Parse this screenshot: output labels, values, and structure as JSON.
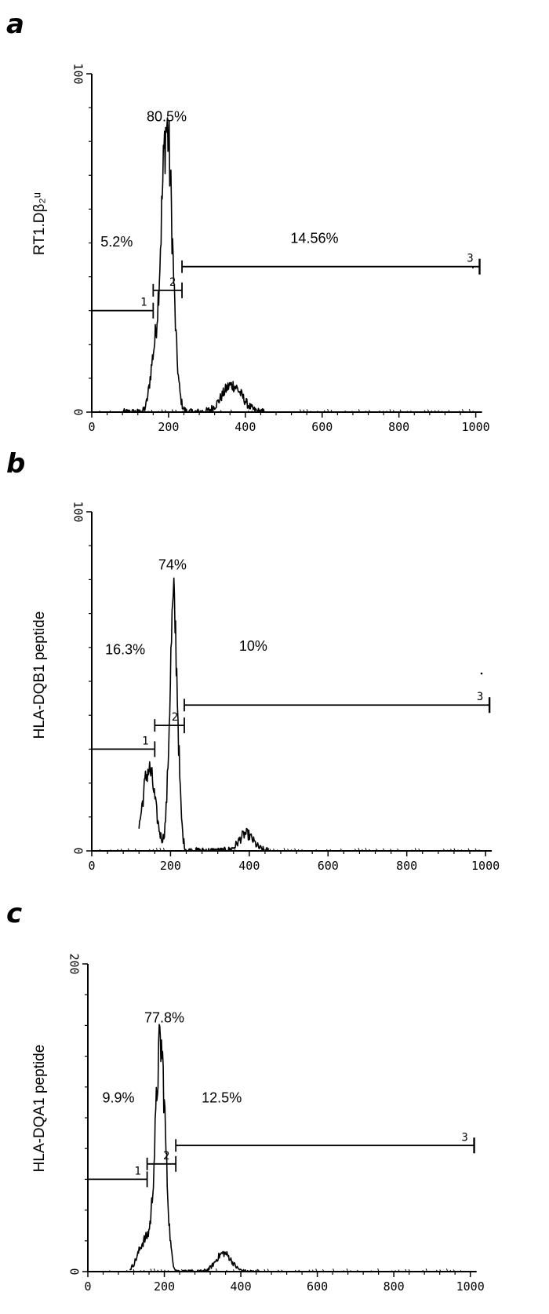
{
  "chart_data": [
    {
      "type": "histogram",
      "panel": "a",
      "ylabel": "RT1.Dβ₂ᵘ",
      "xlabel": "",
      "xlim": [
        0,
        1000
      ],
      "xticks": [
        "0",
        "200",
        "400",
        "600",
        "800",
        "1000"
      ],
      "ylim": [
        0,
        100
      ],
      "yticks": [
        "0",
        "100"
      ],
      "peaks": [
        {
          "center": 195,
          "sigma": 15,
          "height": 84
        },
        {
          "center": 160,
          "sigma": 10,
          "height": 12
        },
        {
          "center": 365,
          "sigma": 26,
          "height": 8
        }
      ],
      "data_range": [
        80,
        450
      ],
      "gates": [
        {
          "label": "1",
          "start": 0,
          "end": 160,
          "level": 30
        },
        {
          "label": "2",
          "start": 160,
          "end": 235,
          "level": 36
        },
        {
          "label": "3",
          "start": 235,
          "end": 1010,
          "level": 43
        }
      ],
      "annotations": [
        {
          "text": "80.5%",
          "x": 195,
          "y": 86
        },
        {
          "text": "5.2%",
          "x": 65,
          "y": 49
        },
        {
          "text": "14.56%",
          "x": 580,
          "y": 50
        }
      ]
    },
    {
      "type": "histogram",
      "panel": "b",
      "ylabel": "HLA-DQB1 peptide",
      "xlabel": "",
      "xlim": [
        0,
        1000
      ],
      "xticks": [
        "0",
        "200",
        "400",
        "600",
        "800",
        "1000"
      ],
      "ylim": [
        0,
        100
      ],
      "yticks": [
        "0",
        "100"
      ],
      "peaks": [
        {
          "center": 208,
          "sigma": 10,
          "height": 72
        },
        {
          "center": 145,
          "sigma": 16,
          "height": 24
        },
        {
          "center": 392,
          "sigma": 18,
          "height": 5
        }
      ],
      "data_range": [
        120,
        450
      ],
      "gates": [
        {
          "label": "1",
          "start": 0,
          "end": 160,
          "level": 30
        },
        {
          "label": "2",
          "start": 160,
          "end": 235,
          "level": 37
        },
        {
          "label": "3",
          "start": 235,
          "end": 1010,
          "level": 43
        }
      ],
      "annotations": [
        {
          "text": "74%",
          "x": 205,
          "y": 83
        },
        {
          "text": "16.3%",
          "x": 85,
          "y": 58
        },
        {
          "text": "10%",
          "x": 410,
          "y": 59
        }
      ]
    },
    {
      "type": "histogram",
      "panel": "c",
      "ylabel": "HLA-DQA1 peptide",
      "xlabel": "",
      "xlim": [
        0,
        1000
      ],
      "xticks": [
        "0",
        "200",
        "400",
        "600",
        "800",
        "1000"
      ],
      "ylim": [
        0,
        200
      ],
      "yticks": [
        "0",
        "200"
      ],
      "peaks": [
        {
          "center": 190,
          "sigma": 13,
          "height": 146
        },
        {
          "center": 150,
          "sigma": 18,
          "height": 20
        },
        {
          "center": 355,
          "sigma": 20,
          "height": 12
        }
      ],
      "data_range": [
        110,
        450
      ],
      "gates": [
        {
          "label": "1",
          "start": 0,
          "end": 155,
          "level": 60
        },
        {
          "label": "2",
          "start": 155,
          "end": 230,
          "level": 70
        },
        {
          "label": "3",
          "start": 230,
          "end": 1010,
          "level": 82
        }
      ],
      "annotations": [
        {
          "text": "77.8%",
          "x": 200,
          "y": 162
        },
        {
          "text": "9.9%",
          "x": 80,
          "y": 110
        },
        {
          "text": "12.5%",
          "x": 350,
          "y": 110
        }
      ]
    }
  ]
}
